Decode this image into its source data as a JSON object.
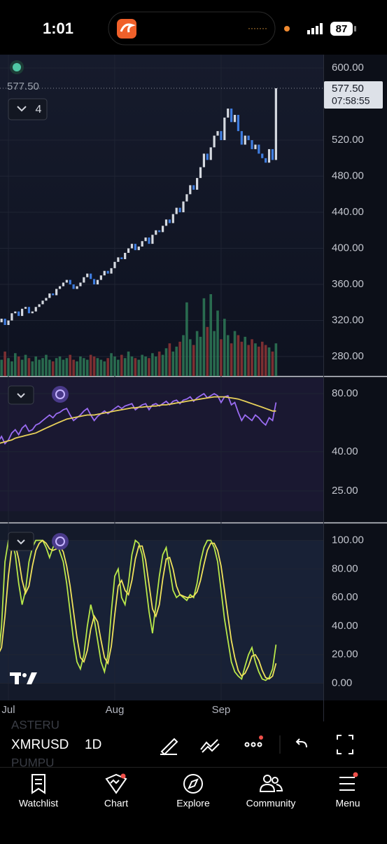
{
  "status_bar": {
    "time": "1:01",
    "battery": "87"
  },
  "overlay": {
    "indicator_count": "4",
    "price_label": "577.50",
    "countdown": "07:58:55"
  },
  "chart_data": [
    {
      "type": "candlestick",
      "ylim": [
        258.3,
        614.8
      ],
      "yticks": [
        {
          "value": 600,
          "label": "600.00"
        },
        {
          "value": 520,
          "label": "520.00"
        },
        {
          "value": 480,
          "label": "480.00"
        },
        {
          "value": 440,
          "label": "440.00"
        },
        {
          "value": 400,
          "label": "400.00"
        },
        {
          "value": 360,
          "label": "360.00"
        },
        {
          "value": 320,
          "label": "320.00"
        },
        {
          "value": 280,
          "label": "280.00"
        }
      ],
      "up_color": "#d5d9e0",
      "down_color": "#3f7de0",
      "values": [
        318,
        322,
        315,
        320,
        328,
        330,
        325,
        333,
        335,
        328,
        330,
        335,
        338,
        342,
        345,
        350,
        348,
        355,
        358,
        362,
        365,
        360,
        355,
        358,
        362,
        368,
        372,
        366,
        360,
        365,
        370,
        375,
        372,
        378,
        385,
        390,
        388,
        395,
        400,
        405,
        398,
        402,
        408,
        412,
        405,
        415,
        420,
        418,
        425,
        432,
        428,
        438,
        445,
        440,
        452,
        460,
        470,
        465,
        478,
        490,
        505,
        498,
        512,
        525,
        530,
        520,
        545,
        555,
        540,
        548,
        530,
        515,
        525,
        520,
        510,
        515,
        505,
        500,
        495,
        510,
        498,
        577.5
      ],
      "volume": {
        "ylim": [
          0,
          100
        ],
        "up_color": "#2e7a57",
        "down_color": "#8f3535",
        "values": [
          25,
          20,
          30,
          22,
          18,
          28,
          24,
          20,
          26,
          22,
          18,
          24,
          20,
          22,
          26,
          20,
          18,
          22,
          24,
          20,
          22,
          26,
          20,
          18,
          24,
          22,
          20,
          26,
          24,
          22,
          20,
          18,
          22,
          28,
          24,
          20,
          26,
          22,
          30,
          24,
          22,
          20,
          26,
          24,
          22,
          28,
          24,
          30,
          26,
          34,
          40,
          30,
          36,
          42,
          50,
          90,
          45,
          38,
          55,
          48,
          95,
          60,
          100,
          55,
          80,
          45,
          70,
          50,
          40,
          55,
          50,
          42,
          48,
          38,
          45,
          40,
          36,
          42,
          38,
          35,
          30,
          40
        ]
      }
    },
    {
      "type": "line",
      "log_scale": true,
      "ylim": [
        17.3,
        97.8
      ],
      "yticks": [
        {
          "value": 80,
          "label": "80.00"
        },
        {
          "value": 40,
          "label": "40.00"
        },
        {
          "value": 25,
          "label": "25.00"
        }
      ],
      "series": [
        {
          "color": "#9a6cf2",
          "values": [
            45,
            48,
            44,
            46,
            50,
            52,
            49,
            53,
            55,
            51,
            52,
            55,
            56,
            58,
            60,
            62,
            60,
            63,
            64,
            66,
            67,
            62,
            58,
            60,
            62,
            65,
            67,
            62,
            58,
            61,
            63,
            65,
            63,
            65,
            67,
            69,
            67,
            69,
            70,
            71,
            66,
            68,
            70,
            71,
            66,
            70,
            71,
            69,
            71,
            73,
            70,
            73,
            74,
            71,
            74,
            75,
            77,
            73,
            76,
            78,
            80,
            76,
            78,
            80,
            78,
            72,
            77,
            78,
            70,
            72,
            64,
            58,
            62,
            60,
            58,
            62,
            60,
            57,
            55,
            60,
            58,
            72
          ]
        },
        {
          "color": "#e8d15a",
          "values": [
            44,
            44.5,
            45,
            45.5,
            46,
            47,
            47.5,
            48,
            48.5,
            49,
            49.5,
            50,
            51,
            52,
            53,
            54,
            55,
            56,
            57,
            58,
            59,
            59.5,
            60,
            60.5,
            61,
            61.5,
            62,
            62,
            62,
            62.5,
            63,
            63.5,
            64,
            64.5,
            65,
            65.5,
            66,
            66.5,
            67,
            67.5,
            67.5,
            68,
            68,
            68.5,
            68.5,
            69,
            69,
            69.5,
            70,
            70,
            70.5,
            71,
            71.5,
            72,
            72.5,
            73,
            73.5,
            74,
            74.5,
            75,
            75.5,
            76,
            76.5,
            77,
            77,
            77,
            77,
            76.5,
            76,
            75.5,
            75,
            74,
            73,
            72,
            71,
            70,
            69,
            68,
            67,
            66,
            65,
            65
          ]
        }
      ]
    },
    {
      "type": "line",
      "ylim": [
        -12,
        112
      ],
      "yticks": [
        {
          "value": 100,
          "label": "100.00"
        },
        {
          "value": 80,
          "label": "80.00"
        },
        {
          "value": 60,
          "label": "60.00"
        },
        {
          "value": 40,
          "label": "40.00"
        },
        {
          "value": 20,
          "label": "20.00"
        },
        {
          "value": 0,
          "label": "0.00"
        }
      ],
      "xlim": [
        0.55,
        94.8
      ],
      "xticks": [
        {
          "value": 3,
          "label": "Jul"
        },
        {
          "value": 34,
          "label": "Aug"
        },
        {
          "value": 65,
          "label": "Sep"
        }
      ],
      "series": [
        {
          "color": "#b8e84a",
          "values": [
            15,
            40,
            85,
            100,
            100,
            90,
            70,
            55,
            65,
            85,
            95,
            100,
            100,
            100,
            95,
            88,
            95,
            100,
            92,
            85,
            70,
            50,
            30,
            15,
            10,
            20,
            40,
            55,
            45,
            30,
            15,
            8,
            20,
            50,
            75,
            80,
            60,
            55,
            70,
            90,
            100,
            98,
            90,
            70,
            50,
            35,
            55,
            75,
            90,
            95,
            80,
            65,
            60,
            62,
            60,
            58,
            62,
            60,
            70,
            85,
            95,
            100,
            100,
            95,
            85,
            65,
            45,
            30,
            15,
            8,
            5,
            3,
            12,
            20,
            25,
            15,
            8,
            3,
            2,
            4,
            10,
            27
          ]
        },
        {
          "color": "#f0e25c",
          "values": [
            20,
            25,
            47,
            75,
            95,
            97,
            87,
            72,
            63,
            68,
            82,
            93,
            98,
            100,
            98,
            94,
            93,
            94,
            96,
            92,
            82,
            68,
            50,
            32,
            18,
            15,
            23,
            38,
            47,
            43,
            30,
            18,
            14,
            26,
            48,
            68,
            72,
            65,
            62,
            72,
            87,
            96,
            96,
            86,
            69,
            52,
            47,
            55,
            73,
            87,
            88,
            80,
            68,
            62,
            61,
            60,
            60,
            61,
            64,
            72,
            83,
            93,
            98,
            98,
            93,
            82,
            65,
            47,
            30,
            18,
            9,
            5,
            7,
            12,
            19,
            20,
            16,
            9,
            4,
            3,
            5,
            14
          ]
        }
      ]
    }
  ],
  "toolbar": {
    "symbol": "XMRUSD",
    "interval": "1D",
    "background_symbols": [
      "ASTERU",
      "PUMPU"
    ]
  },
  "nav": [
    "Watchlist",
    "Chart",
    "Explore",
    "Community",
    "Menu"
  ]
}
